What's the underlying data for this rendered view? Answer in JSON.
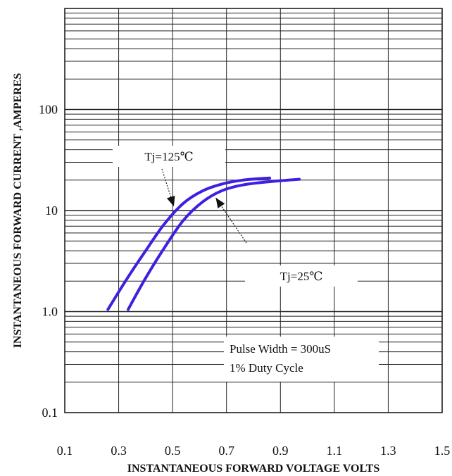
{
  "chart_data": {
    "type": "line",
    "xlabel": "INSTANTANEOUS FORWARD VOLTAGE VOLTS",
    "ylabel": "INSTANTANEOUS FORWARD CURRENT ,AMPERES",
    "xlim": [
      0.1,
      1.5
    ],
    "ylim": [
      0.1,
      1000
    ],
    "y_scale": "log",
    "grid": true,
    "x_ticks": [
      {
        "value": 0.1,
        "label": "0.1"
      },
      {
        "value": 0.3,
        "label": "0.3"
      },
      {
        "value": 0.5,
        "label": "0.5"
      },
      {
        "value": 0.7,
        "label": "0.7"
      },
      {
        "value": 0.9,
        "label": "0.9"
      },
      {
        "value": 1.1,
        "label": "1.1"
      },
      {
        "value": 1.3,
        "label": "1.3"
      },
      {
        "value": 1.5,
        "label": "1.5"
      }
    ],
    "y_ticks": [
      {
        "value": 0.1,
        "label": "0.1"
      },
      {
        "value": 1,
        "label": "1.0"
      },
      {
        "value": 10,
        "label": "10"
      },
      {
        "value": 100,
        "label": "100"
      }
    ],
    "series": [
      {
        "name": "Tj=125℃",
        "color": "#3f1fe0",
        "points": [
          [
            0.26,
            1.05
          ],
          [
            0.33,
            2.1
          ],
          [
            0.4,
            4.0
          ],
          [
            0.47,
            7.4
          ],
          [
            0.54,
            11.8
          ],
          [
            0.61,
            15.6
          ],
          [
            0.68,
            18.2
          ],
          [
            0.76,
            20.0
          ],
          [
            0.86,
            21.0
          ]
        ]
      },
      {
        "name": "Tj=25℃",
        "color": "#3f1fe0",
        "points": [
          [
            0.335,
            1.05
          ],
          [
            0.4,
            2.15
          ],
          [
            0.47,
            4.3
          ],
          [
            0.54,
            8.0
          ],
          [
            0.61,
            12.1
          ],
          [
            0.68,
            15.6
          ],
          [
            0.76,
            17.9
          ],
          [
            0.86,
            19.3
          ],
          [
            0.97,
            20.4
          ]
        ]
      }
    ],
    "annotations": [
      {
        "text": "Tj=125℃",
        "series": 0,
        "box": true
      },
      {
        "text": "Tj=25℃",
        "series": 1,
        "box": true
      },
      {
        "text": "Pulse Width = 300uS",
        "box": true
      },
      {
        "text": "1% Duty Cycle",
        "box": true
      }
    ]
  }
}
